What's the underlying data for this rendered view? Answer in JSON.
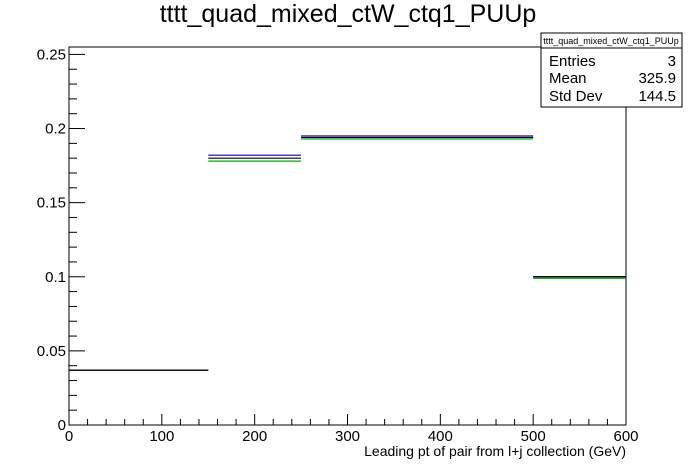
{
  "chart_data": {
    "type": "histogram",
    "title": "tttt_quad_mixed_ctW_ctq1_PUUp",
    "xlabel": "Leading pt of pair from l+j collection (GeV)",
    "ylabel": "",
    "xlim": [
      0,
      600
    ],
    "ylim": [
      0,
      0.255
    ],
    "x_ticks": [
      "0",
      "100",
      "200",
      "300",
      "400",
      "500",
      "600"
    ],
    "y_ticks": [
      "0",
      "0.05",
      "0.1",
      "0.15",
      "0.2",
      "0.25"
    ],
    "grid": false,
    "bins": [
      [
        0,
        150
      ],
      [
        150,
        250
      ],
      [
        250,
        500
      ],
      [
        500,
        600
      ]
    ],
    "series": [
      {
        "color": "#000000",
        "values": [
          0.037,
          0.18,
          0.194,
          0.1
        ]
      },
      {
        "color": "#0000cc",
        "values": [
          0.037,
          0.182,
          0.195,
          0.1
        ]
      },
      {
        "color": "#00aa00",
        "values": [
          0.037,
          0.178,
          0.193,
          0.099
        ]
      }
    ],
    "stats_box": {
      "title": "tttt_quad_mixed_ctW_ctq1_PUUp",
      "rows": [
        {
          "label": "Entries",
          "value": "3"
        },
        {
          "label": "Mean",
          "value": "325.9"
        },
        {
          "label": "Std Dev",
          "value": "144.5"
        }
      ],
      "placement": "top-right"
    }
  }
}
